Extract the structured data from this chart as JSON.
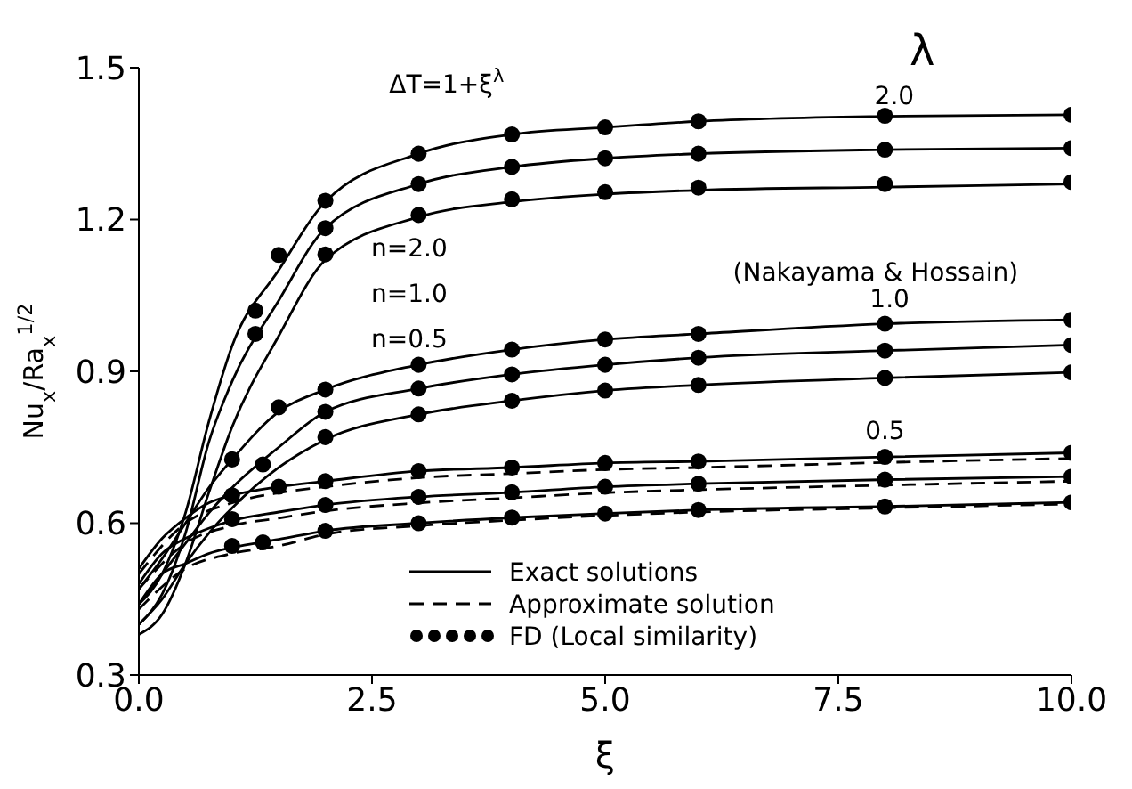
{
  "chart_data": {
    "type": "line",
    "xlabel": "ξ",
    "ylabel": "Nu$_{x}$/Ra$_{x}$$^{1/2}$",
    "xlim": [
      0,
      10
    ],
    "xticks": [
      {
        "value": 0,
        "label": "0.0"
      },
      {
        "value": 2.5,
        "label": "2.5"
      },
      {
        "value": 5,
        "label": "5.0"
      },
      {
        "value": 7.5,
        "label": "7.5"
      },
      {
        "value": 10,
        "label": "10.0"
      }
    ],
    "ylim": [
      0.3,
      1.5
    ],
    "yticks": [
      0.3,
      0.6,
      0.9,
      1.2,
      1.5
    ],
    "grid": false,
    "legend": "bottom",
    "annotations": [
      "ΔT=1+ξ$^{λ}$",
      "λ",
      {
        "text": "2.0",
        "x": 8.1,
        "y": 1.42
      },
      {
        "text": "1.0",
        "x": 8.05,
        "y": 1.02
      },
      {
        "text": "0.5",
        "x": 8,
        "y": 0.76
      },
      "n=2.0",
      "n=1.0",
      "n=0.5",
      "(Nakayama & Hossain)"
    ],
    "series": [
      {
        "name": "Exact solutions",
        "line_style": "solid",
        "marker": "none",
        "color": "#000000",
        "x": [
          0,
          0.25,
          0.5,
          0.75,
          1,
          1.5,
          2,
          3,
          4,
          5,
          6,
          8,
          10
        ],
        "values": [
          0.44,
          0.5,
          0.62,
          0.8,
          0.95,
          1.1,
          1.235,
          1.33,
          1.368,
          1.382,
          1.394,
          1.404,
          1.407
        ]
      },
      {
        "type": "line",
        "line_style": "solid",
        "marker": "none",
        "color": "#000000",
        "x": [
          0,
          0.25,
          0.5,
          0.75,
          1,
          1.5,
          2,
          3,
          4,
          5,
          6,
          8,
          10
        ],
        "values": [
          0.4,
          0.46,
          0.58,
          0.76,
          0.88,
          1.04,
          1.183,
          1.27,
          1.304,
          1.321,
          1.33,
          1.338,
          1.341
        ]
      },
      {
        "type": "line",
        "line_style": "solid",
        "marker": "none",
        "color": "#000000",
        "x": [
          0,
          0.25,
          0.5,
          0.75,
          1,
          1.5,
          2,
          3,
          4,
          5,
          6,
          8,
          10
        ],
        "values": [
          0.38,
          0.42,
          0.52,
          0.66,
          0.79,
          0.97,
          1.12,
          1.205,
          1.235,
          1.25,
          1.258,
          1.264,
          1.27
        ]
      },
      {
        "type": "line",
        "line_style": "solid",
        "marker": "none",
        "color": "#000000",
        "x": [
          0,
          0.25,
          0.5,
          0.75,
          1,
          1.5,
          2,
          3,
          4,
          5,
          6,
          8,
          10
        ],
        "values": [
          0.47,
          0.53,
          0.6,
          0.67,
          0.726,
          0.82,
          0.864,
          0.913,
          0.943,
          0.963,
          0.974,
          0.994,
          1.002
        ]
      },
      {
        "type": "line",
        "line_style": "solid",
        "marker": "none",
        "color": "#000000",
        "x": [
          0,
          0.25,
          0.5,
          0.75,
          1,
          1.5,
          2,
          3,
          4,
          5,
          6,
          8,
          10
        ],
        "values": [
          0.44,
          0.5,
          0.56,
          0.62,
          0.67,
          0.75,
          0.82,
          0.866,
          0.894,
          0.913,
          0.927,
          0.941,
          0.952
        ]
      },
      {
        "type": "line",
        "line_style": "solid",
        "marker": "none",
        "color": "#000000",
        "x": [
          0,
          0.25,
          0.5,
          0.75,
          1,
          1.5,
          2,
          3,
          4,
          5,
          6,
          8,
          10
        ],
        "values": [
          0.4,
          0.45,
          0.52,
          0.58,
          0.63,
          0.71,
          0.765,
          0.815,
          0.842,
          0.862,
          0.873,
          0.887,
          0.898
        ]
      },
      {
        "type": "line",
        "line_style": "solid",
        "marker": "none",
        "color": "#000000",
        "x": [
          0,
          0.25,
          0.5,
          0.75,
          1,
          1.5,
          2,
          3,
          4,
          5,
          6,
          8,
          10
        ],
        "values": [
          0.51,
          0.57,
          0.61,
          0.64,
          0.655,
          0.672,
          0.683,
          0.703,
          0.71,
          0.719,
          0.722,
          0.731,
          0.739
        ]
      },
      {
        "type": "line",
        "line_style": "solid",
        "marker": "none",
        "color": "#000000",
        "x": [
          0,
          0.25,
          0.5,
          0.75,
          1,
          1.5,
          2,
          3,
          4,
          5,
          6,
          8,
          10
        ],
        "values": [
          0.48,
          0.54,
          0.57,
          0.59,
          0.605,
          0.622,
          0.636,
          0.652,
          0.661,
          0.672,
          0.678,
          0.686,
          0.692
        ]
      },
      {
        "type": "line",
        "line_style": "solid",
        "marker": "none",
        "color": "#000000",
        "x": [
          0,
          0.25,
          0.5,
          0.75,
          1,
          1.5,
          2,
          3,
          4,
          5,
          6,
          8,
          10
        ],
        "values": [
          0.44,
          0.5,
          0.52,
          0.54,
          0.552,
          0.568,
          0.585,
          0.6,
          0.611,
          0.619,
          0.626,
          0.633,
          0.641
        ]
      },
      {
        "name": "Approximate solution",
        "line_style": "dashed",
        "marker": "none",
        "color": "#000000",
        "x": [
          0,
          0.5,
          1,
          1.5,
          2,
          3,
          4,
          5,
          6,
          8,
          10
        ],
        "values": [
          0.5,
          0.6,
          0.64,
          0.66,
          0.672,
          0.69,
          0.698,
          0.706,
          0.71,
          0.72,
          0.728
        ]
      },
      {
        "type": "line",
        "line_style": "dashed",
        "marker": "none",
        "color": "#000000",
        "x": [
          0,
          0.5,
          1,
          1.5,
          2,
          3,
          4,
          5,
          6,
          8,
          10
        ],
        "values": [
          0.47,
          0.56,
          0.595,
          0.61,
          0.624,
          0.64,
          0.65,
          0.66,
          0.666,
          0.675,
          0.683
        ]
      },
      {
        "type": "line",
        "line_style": "dashed",
        "marker": "none",
        "color": "#000000",
        "x": [
          0,
          0.5,
          1,
          1.5,
          2,
          3,
          4,
          5,
          6,
          8,
          10
        ],
        "values": [
          0.43,
          0.51,
          0.54,
          0.555,
          0.578,
          0.595,
          0.606,
          0.615,
          0.622,
          0.63,
          0.638
        ]
      },
      {
        "name": "FD (Local similarity)",
        "type": "scatter",
        "marker": "circle",
        "color": "#000000",
        "x": [
          1.25,
          1.5,
          2,
          3,
          4,
          5,
          6,
          8,
          10
        ],
        "values": [
          1.02,
          1.13,
          1.237,
          1.33,
          1.368,
          1.382,
          1.394,
          1.405,
          1.407
        ]
      },
      {
        "type": "scatter",
        "marker": "circle",
        "color": "#000000",
        "x": [
          1.25,
          2,
          3,
          4,
          5,
          6,
          8,
          10
        ],
        "values": [
          0.974,
          1.183,
          1.27,
          1.304,
          1.321,
          1.33,
          1.338,
          1.341
        ]
      },
      {
        "type": "scatter",
        "marker": "circle",
        "color": "#000000",
        "x": [
          2,
          3,
          4,
          5,
          6,
          8,
          10
        ],
        "values": [
          1.131,
          1.209,
          1.24,
          1.254,
          1.263,
          1.27,
          1.274
        ]
      },
      {
        "type": "scatter",
        "marker": "circle",
        "color": "#000000",
        "x": [
          1,
          1.5,
          2,
          3,
          4,
          5,
          6,
          8,
          10
        ],
        "values": [
          0.726,
          0.829,
          0.864,
          0.913,
          0.943,
          0.963,
          0.974,
          0.994,
          1.002
        ]
      },
      {
        "type": "scatter",
        "marker": "circle",
        "color": "#000000",
        "x": [
          1,
          1.33,
          2,
          3,
          4,
          5,
          6,
          8,
          10
        ],
        "values": [
          0.655,
          0.716,
          0.82,
          0.866,
          0.894,
          0.913,
          0.927,
          0.941,
          0.952
        ]
      },
      {
        "type": "scatter",
        "marker": "circle",
        "color": "#000000",
        "x": [
          2,
          3,
          4,
          5,
          6,
          8,
          10
        ],
        "values": [
          0.77,
          0.815,
          0.842,
          0.862,
          0.873,
          0.887,
          0.898
        ]
      },
      {
        "type": "scatter",
        "marker": "circle",
        "color": "#000000",
        "x": [
          1.5,
          2,
          3,
          4,
          5,
          6,
          8,
          10
        ],
        "values": [
          0.672,
          0.683,
          0.703,
          0.71,
          0.719,
          0.722,
          0.731,
          0.739
        ]
      },
      {
        "type": "scatter",
        "marker": "circle",
        "color": "#000000",
        "x": [
          1,
          2,
          3,
          4,
          5,
          6,
          8,
          10
        ],
        "values": [
          0.608,
          0.636,
          0.652,
          0.661,
          0.672,
          0.678,
          0.686,
          0.692
        ]
      },
      {
        "type": "scatter",
        "marker": "circle",
        "color": "#000000",
        "x": [
          1,
          1.33,
          2,
          3,
          4,
          5,
          6,
          8,
          10
        ],
        "values": [
          0.555,
          0.562,
          0.585,
          0.6,
          0.611,
          0.619,
          0.626,
          0.633,
          0.641
        ]
      }
    ]
  }
}
